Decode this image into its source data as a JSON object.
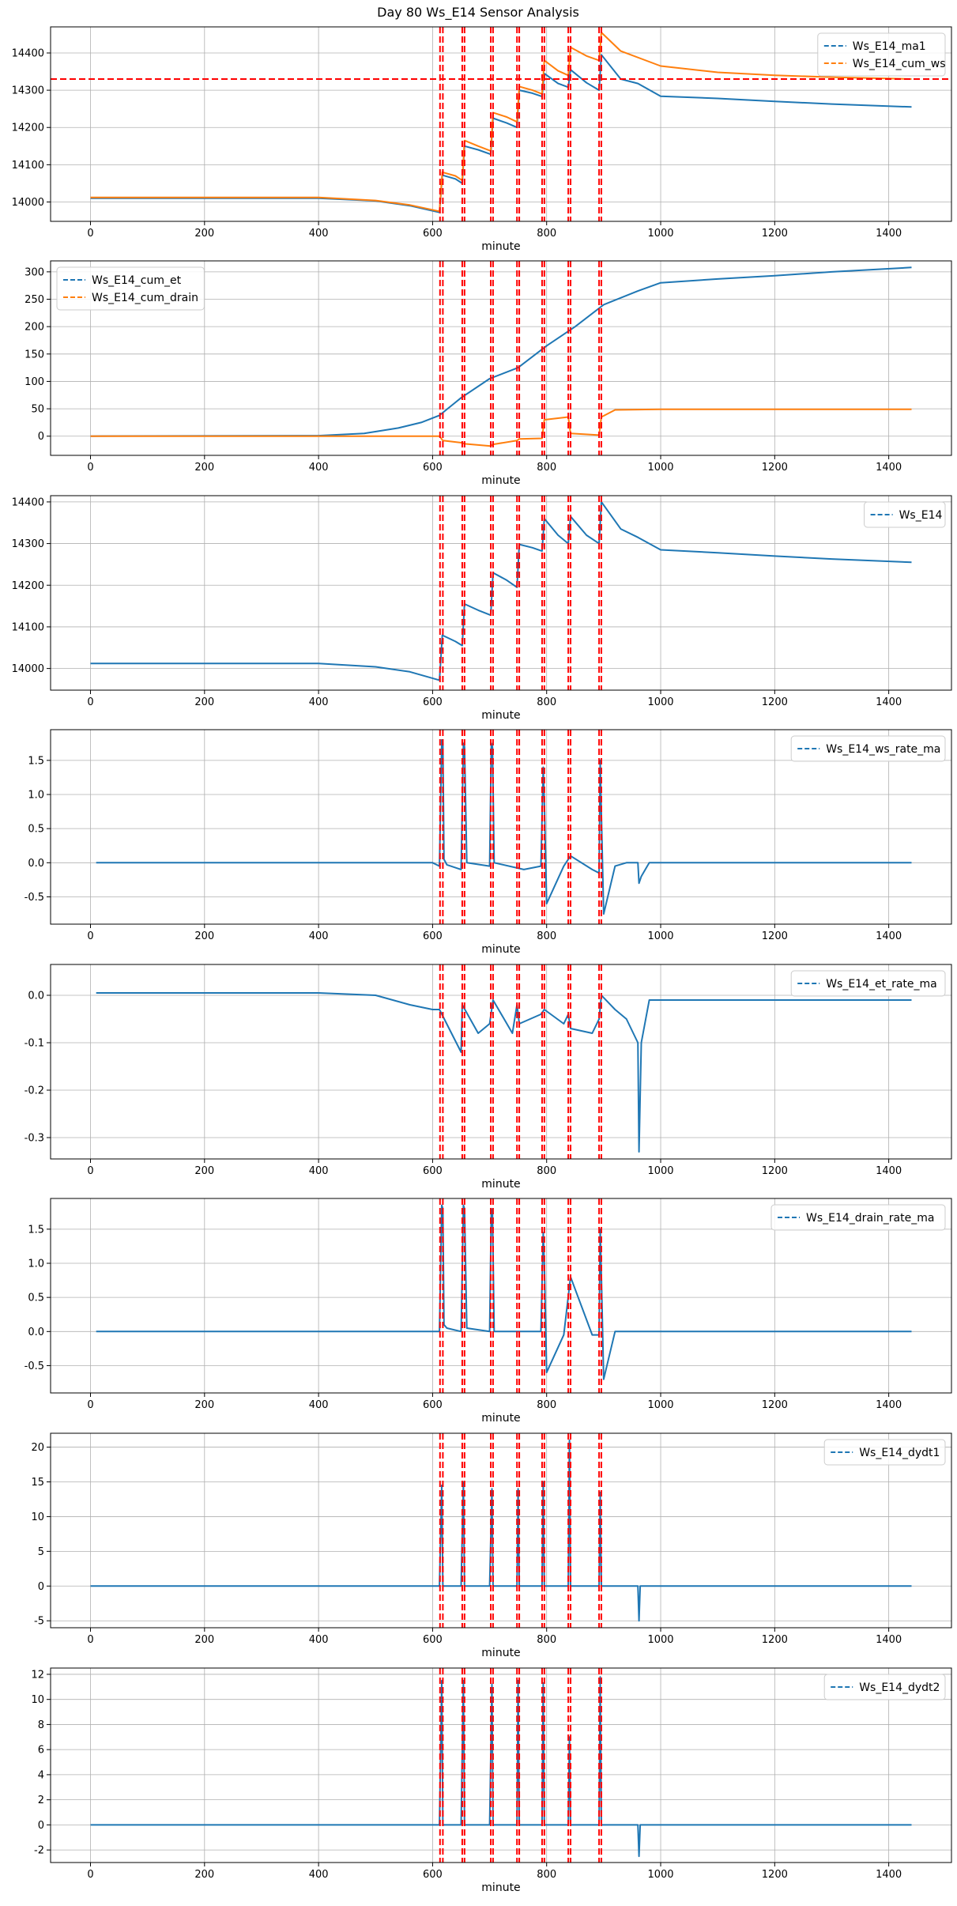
{
  "figure_title": "Day 80 Ws_E14 Sensor Analysis",
  "colors": {
    "blue": "#1f77b4",
    "orange": "#ff7f0e",
    "event": "#ff0000"
  },
  "event_lines_minutes": [
    613,
    618,
    652,
    656,
    702,
    706,
    748,
    752,
    792,
    796,
    838,
    842,
    892,
    896
  ],
  "chart_data": [
    {
      "type": "line",
      "xlabel": "minute",
      "xlim": [
        -70,
        1510
      ],
      "xticks": [
        0,
        200,
        400,
        600,
        800,
        1000,
        1200,
        1400
      ],
      "ylim": [
        13948,
        14470
      ],
      "yticks": [
        14000,
        14100,
        14200,
        14300,
        14400
      ],
      "hline": 14330,
      "legend": "top-right",
      "series": [
        {
          "name": "Ws_E14_ma1",
          "color": "#1f77b4",
          "x": [
            0,
            400,
            500,
            560,
            612,
            617,
            640,
            652,
            656,
            680,
            702,
            706,
            730,
            748,
            752,
            775,
            792,
            796,
            820,
            838,
            842,
            870,
            892,
            896,
            930,
            960,
            1000,
            1100,
            1200,
            1300,
            1440
          ],
          "y": [
            14010,
            14010,
            14003,
            13990,
            13972,
            14072,
            14062,
            14050,
            14150,
            14140,
            14128,
            14225,
            14212,
            14200,
            14300,
            14292,
            14283,
            14345,
            14318,
            14308,
            14355,
            14320,
            14300,
            14395,
            14330,
            14318,
            14284,
            14278,
            14270,
            14263,
            14255
          ]
        },
        {
          "name": "Ws_E14_cum_ws",
          "color": "#ff7f0e",
          "x": [
            0,
            400,
            500,
            560,
            612,
            617,
            640,
            652,
            656,
            680,
            702,
            706,
            730,
            748,
            752,
            775,
            792,
            796,
            820,
            838,
            842,
            870,
            892,
            896,
            930,
            1000,
            1100,
            1200,
            1300,
            1440
          ],
          "y": [
            14012,
            14012,
            14004,
            13992,
            13975,
            14080,
            14070,
            14058,
            14165,
            14150,
            14137,
            14240,
            14228,
            14215,
            14310,
            14300,
            14290,
            14380,
            14352,
            14340,
            14415,
            14392,
            14380,
            14455,
            14405,
            14365,
            14348,
            14340,
            14335,
            14330
          ]
        }
      ]
    },
    {
      "type": "line",
      "xlabel": "minute",
      "xlim": [
        -70,
        1510
      ],
      "xticks": [
        0,
        200,
        400,
        600,
        800,
        1000,
        1200,
        1400
      ],
      "ylim": [
        -35,
        320
      ],
      "yticks": [
        0,
        50,
        100,
        150,
        200,
        250,
        300
      ],
      "legend": "top-left",
      "series": [
        {
          "name": "Ws_E14_cum_et",
          "color": "#1f77b4",
          "x": [
            0,
            400,
            480,
            540,
            580,
            612,
            650,
            700,
            750,
            800,
            850,
            900,
            960,
            1000,
            1100,
            1200,
            1300,
            1440
          ],
          "y": [
            0,
            1,
            5,
            15,
            25,
            38,
            70,
            105,
            125,
            165,
            200,
            240,
            265,
            280,
            287,
            293,
            300,
            308
          ]
        },
        {
          "name": "Ws_E14_cum_drain",
          "color": "#ff7f0e",
          "x": [
            0,
            400,
            612,
            618,
            652,
            656,
            702,
            706,
            748,
            752,
            792,
            796,
            838,
            842,
            892,
            896,
            920,
            1000,
            1440
          ],
          "y": [
            0,
            0,
            0,
            -8,
            -12,
            -14,
            -18,
            -15,
            -8,
            -5,
            -4,
            30,
            35,
            5,
            2,
            35,
            48,
            49,
            49
          ]
        }
      ]
    },
    {
      "type": "line",
      "xlabel": "minute",
      "xlim": [
        -70,
        1510
      ],
      "xticks": [
        0,
        200,
        400,
        600,
        800,
        1000,
        1200,
        1400
      ],
      "ylim": [
        13948,
        14415
      ],
      "yticks": [
        14000,
        14100,
        14200,
        14300,
        14400
      ],
      "legend": "top-right",
      "series": [
        {
          "name": "Ws_E14",
          "color": "#1f77b4",
          "x": [
            0,
            400,
            500,
            560,
            612,
            617,
            640,
            652,
            656,
            680,
            702,
            706,
            730,
            748,
            752,
            775,
            792,
            796,
            820,
            838,
            842,
            870,
            892,
            896,
            930,
            960,
            1000,
            1100,
            1200,
            1300,
            1440
          ],
          "y": [
            14012,
            14012,
            14004,
            13992,
            13972,
            14080,
            14065,
            14055,
            14155,
            14140,
            14128,
            14230,
            14212,
            14195,
            14298,
            14290,
            14282,
            14360,
            14320,
            14300,
            14365,
            14320,
            14300,
            14400,
            14335,
            14315,
            14285,
            14278,
            14270,
            14263,
            14255
          ]
        }
      ]
    },
    {
      "type": "line",
      "xlabel": "minute",
      "xlim": [
        -70,
        1510
      ],
      "xticks": [
        0,
        200,
        400,
        600,
        800,
        1000,
        1200,
        1400
      ],
      "ylim": [
        -0.9,
        1.95
      ],
      "yticks": [
        -0.5,
        0.0,
        0.5,
        1.0,
        1.5
      ],
      "legend": "top-right",
      "series": [
        {
          "name": "Ws_E14_ws_rate_ma",
          "color": "#1f77b4",
          "x": [
            10,
            600,
            612,
            616,
            618,
            620,
            625,
            650,
            654,
            656,
            660,
            700,
            703,
            705,
            708,
            760,
            790,
            794,
            796,
            800,
            830,
            842,
            880,
            892,
            894,
            896,
            900,
            920,
            940,
            960,
            962,
            966,
            980,
            1440
          ],
          "y": [
            0,
            0,
            -0.05,
            1.8,
            1.75,
            0.05,
            -0.03,
            -0.1,
            1.75,
            1.7,
            0.0,
            -0.05,
            1.75,
            1.7,
            0.0,
            -0.1,
            -0.05,
            1.4,
            0.9,
            -0.6,
            -0.05,
            0.1,
            -0.1,
            -0.15,
            1.5,
            0.7,
            -0.75,
            -0.05,
            0.0,
            0.0,
            -0.3,
            -0.2,
            0.0,
            0.0
          ]
        }
      ]
    },
    {
      "type": "line",
      "xlabel": "minute",
      "xlim": [
        -70,
        1510
      ],
      "xticks": [
        0,
        200,
        400,
        600,
        800,
        1000,
        1200,
        1400
      ],
      "ylim": [
        -0.345,
        0.065
      ],
      "yticks": [
        -0.3,
        -0.2,
        -0.1,
        0.0
      ],
      "legend": "top-right",
      "series": [
        {
          "name": "Ws_E14_et_rate_ma",
          "color": "#1f77b4",
          "x": [
            10,
            400,
            500,
            560,
            600,
            612,
            650,
            652,
            680,
            700,
            706,
            740,
            748,
            752,
            790,
            796,
            830,
            838,
            842,
            880,
            892,
            896,
            920,
            940,
            960,
            962,
            966,
            980,
            1440
          ],
          "y": [
            0.005,
            0.005,
            0.0,
            -0.02,
            -0.03,
            -0.03,
            -0.12,
            -0.02,
            -0.08,
            -0.06,
            -0.01,
            -0.08,
            -0.02,
            -0.06,
            -0.04,
            -0.03,
            -0.06,
            -0.04,
            -0.07,
            -0.08,
            -0.05,
            0.0,
            -0.03,
            -0.05,
            -0.1,
            -0.33,
            -0.1,
            -0.01,
            -0.01
          ]
        }
      ]
    },
    {
      "type": "line",
      "xlabel": "minute",
      "xlim": [
        -70,
        1510
      ],
      "xticks": [
        0,
        200,
        400,
        600,
        800,
        1000,
        1200,
        1400
      ],
      "ylim": [
        -0.9,
        1.95
      ],
      "yticks": [
        -0.5,
        0.0,
        0.5,
        1.0,
        1.5
      ],
      "legend": "top-right",
      "series": [
        {
          "name": "Ws_E14_drain_rate_ma",
          "color": "#1f77b4",
          "x": [
            10,
            600,
            612,
            616,
            618,
            620,
            625,
            650,
            654,
            656,
            660,
            700,
            703,
            705,
            708,
            760,
            790,
            794,
            796,
            800,
            830,
            842,
            880,
            892,
            894,
            896,
            900,
            920,
            1440
          ],
          "y": [
            0,
            0,
            0.0,
            1.85,
            1.8,
            0.1,
            0.05,
            0.0,
            1.85,
            1.8,
            0.05,
            0.0,
            1.8,
            1.75,
            0.0,
            0.0,
            0.0,
            1.45,
            1.0,
            -0.6,
            -0.05,
            0.8,
            -0.05,
            -0.05,
            1.5,
            0.8,
            -0.7,
            0.0,
            0.0
          ]
        }
      ]
    },
    {
      "type": "line",
      "xlabel": "minute",
      "xlim": [
        -70,
        1510
      ],
      "xticks": [
        0,
        200,
        400,
        600,
        800,
        1000,
        1200,
        1400
      ],
      "ylim": [
        -6,
        22
      ],
      "yticks": [
        -5,
        0,
        5,
        10,
        15,
        20
      ],
      "legend": "top-right",
      "series": [
        {
          "name": "Ws_E14_dydt1",
          "color": "#1f77b4",
          "x": [
            0,
            500,
            612,
            616,
            618,
            650,
            654,
            656,
            700,
            704,
            706,
            748,
            750,
            752,
            792,
            794,
            796,
            838,
            840,
            842,
            892,
            894,
            896,
            960,
            962,
            964,
            1000,
            1440
          ],
          "y": [
            0,
            0,
            0,
            14.5,
            0,
            0,
            15,
            0,
            0,
            14,
            0,
            0,
            14,
            0,
            0,
            15,
            0,
            0,
            21,
            0,
            0,
            13.5,
            0,
            0,
            -5,
            0,
            0,
            0
          ]
        }
      ]
    },
    {
      "type": "line",
      "xlabel": "minute",
      "xlim": [
        -70,
        1510
      ],
      "xticks": [
        0,
        200,
        400,
        600,
        800,
        1000,
        1200,
        1400
      ],
      "ylim": [
        -3,
        12.5
      ],
      "yticks": [
        -2,
        0,
        2,
        4,
        6,
        8,
        10,
        12
      ],
      "legend": "top-right",
      "series": [
        {
          "name": "Ws_E14_dydt2",
          "color": "#1f77b4",
          "x": [
            0,
            500,
            612,
            616,
            618,
            650,
            654,
            656,
            700,
            704,
            706,
            748,
            750,
            752,
            792,
            794,
            796,
            838,
            840,
            842,
            892,
            894,
            896,
            960,
            962,
            964,
            1000,
            1440
          ],
          "y": [
            0,
            0,
            0,
            11.5,
            0,
            0,
            11.5,
            0,
            0,
            11.2,
            0,
            0,
            11.5,
            0,
            0,
            11.3,
            0,
            0,
            7,
            0,
            0,
            11.8,
            0,
            0,
            -2.5,
            0,
            0,
            0
          ]
        }
      ]
    }
  ]
}
